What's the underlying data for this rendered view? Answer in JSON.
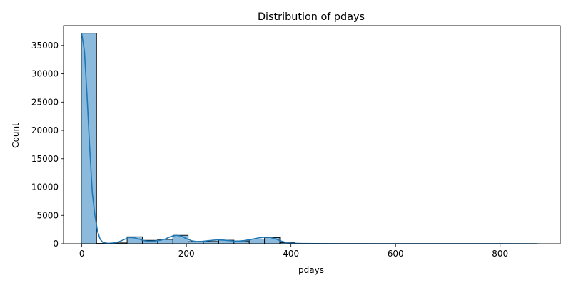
{
  "chart_data": {
    "type": "bar",
    "title": "Distribution of pdays",
    "xlabel": "pdays",
    "ylabel": "Count",
    "xlim": [
      -35,
      915
    ],
    "ylim": [
      0,
      38500
    ],
    "x_ticks": [
      0,
      200,
      400,
      600,
      800
    ],
    "y_ticks": [
      0,
      5000,
      10000,
      15000,
      20000,
      25000,
      30000,
      35000
    ],
    "grid": false,
    "bin_edges": [
      -1,
      28.2,
      57.4,
      86.6,
      115.8,
      145.0,
      174.2,
      203.4,
      232.6,
      261.8,
      291.0,
      320.2,
      349.4,
      378.6,
      407.8,
      437.0,
      466.2,
      495.4,
      524.6,
      553.8,
      583.0,
      612.2,
      641.4,
      670.6,
      699.8,
      729.0,
      758.2,
      787.4,
      816.6,
      845.8,
      875.0
    ],
    "counts": [
      37160,
      60,
      140,
      1220,
      600,
      760,
      1480,
      380,
      400,
      620,
      480,
      820,
      1080,
      180,
      40,
      20,
      15,
      10,
      10,
      8,
      6,
      5,
      4,
      3,
      2,
      2,
      2,
      1,
      1,
      1
    ],
    "kde": {
      "x": [
        0,
        5,
        10,
        15,
        20,
        25,
        30,
        35,
        40,
        50,
        60,
        70,
        80,
        90,
        100,
        110,
        120,
        130,
        140,
        150,
        160,
        170,
        180,
        190,
        200,
        210,
        220,
        230,
        240,
        250,
        260,
        270,
        280,
        290,
        300,
        310,
        320,
        330,
        340,
        350,
        360,
        370,
        380,
        390,
        400,
        420,
        450,
        500,
        600,
        700,
        800,
        870
      ],
      "y": [
        37000,
        34000,
        26000,
        17000,
        9000,
        5000,
        2200,
        800,
        250,
        60,
        120,
        300,
        700,
        1100,
        1050,
        800,
        520,
        450,
        500,
        600,
        850,
        1250,
        1480,
        1350,
        900,
        520,
        380,
        420,
        520,
        600,
        680,
        650,
        560,
        480,
        460,
        540,
        700,
        880,
        1050,
        1150,
        1100,
        880,
        500,
        220,
        90,
        40,
        20,
        10,
        5,
        3,
        2,
        1
      ]
    },
    "bar_color": "#8bbadd",
    "bar_edge_color": "#000000",
    "line_color": "#1f77b4"
  }
}
